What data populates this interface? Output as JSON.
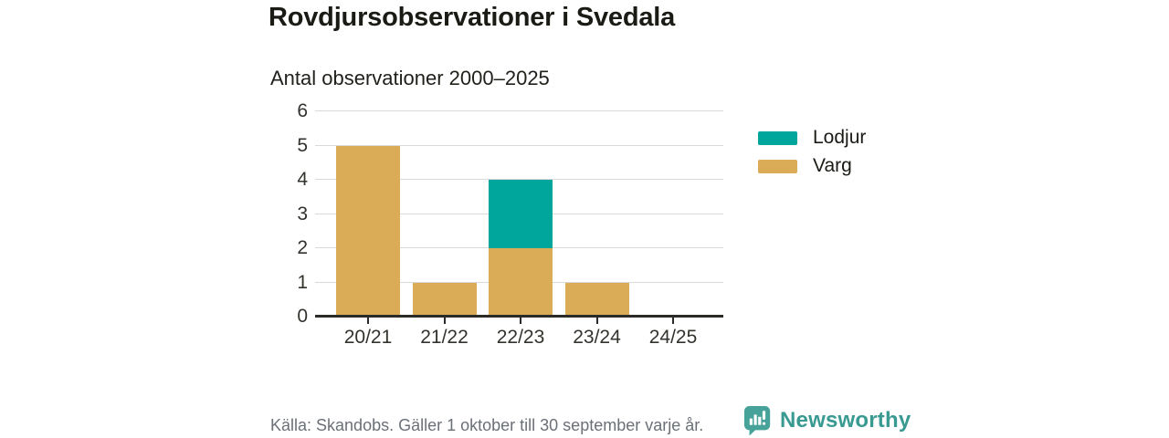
{
  "header": {
    "title": "Rovdjursobservationer i Svedala",
    "subtitle": "Antal observationer 2000–2025"
  },
  "chart_data": {
    "type": "bar",
    "stacked": true,
    "title": "Rovdjursobservationer i Svedala",
    "subtitle": "Antal observationer 2000–2025",
    "categories": [
      "20/21",
      "21/22",
      "22/23",
      "23/24",
      "24/25"
    ],
    "series": [
      {
        "name": "Lodjur",
        "color": "#00a59b",
        "values": [
          0,
          0,
          2,
          0,
          0
        ]
      },
      {
        "name": "Varg",
        "color": "#dbac58",
        "values": [
          5,
          1,
          2,
          1,
          0
        ]
      }
    ],
    "stack_order": [
      "Varg",
      "Lodjur"
    ],
    "totals": [
      5,
      1,
      4,
      1,
      0
    ],
    "xlabel": "",
    "ylabel": "",
    "ylim": [
      0,
      6
    ],
    "yticks": [
      0,
      1,
      2,
      3,
      4,
      5,
      6
    ],
    "grid": true,
    "legend_position": "right"
  },
  "footer": {
    "source_text": "Källa: Skandobs. Gäller 1 oktober till 30 september varje år.",
    "brand_name": "Newsworthy"
  },
  "colors": {
    "lodjur": "#00a59b",
    "varg": "#dbac58",
    "brand": "#399a92",
    "brand_icon": "#47a29a",
    "axis": "#2b2b28",
    "gridline": "#d9d9d9",
    "text_dark": "#1b1b16",
    "text_muted": "#6b7077"
  }
}
